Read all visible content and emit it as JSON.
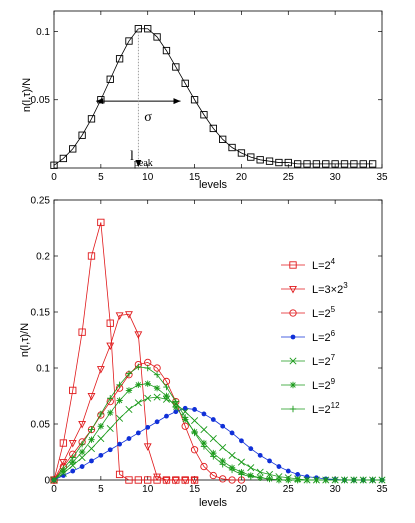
{
  "chart_data": [
    {
      "type": "line",
      "xlabel": "levels",
      "ylabel": "n(l,τ)/N",
      "xlim": [
        0,
        35
      ],
      "ylim": [
        0,
        0.115
      ],
      "xticks": [
        "0",
        "5",
        "10",
        "15",
        "20",
        "25",
        "30",
        "35"
      ],
      "yticks": [
        "0.05",
        "0.1"
      ],
      "grid": false,
      "series": [
        {
          "marker": "square",
          "color": "#000000",
          "x": [
            0,
            1,
            2,
            3,
            4,
            5,
            6,
            7,
            8,
            9,
            10,
            11,
            12,
            13,
            14,
            15,
            16,
            17,
            18,
            19,
            20,
            21,
            22,
            23,
            24,
            25,
            26,
            27,
            28,
            29,
            30,
            31,
            32,
            33,
            34
          ],
          "y": [
            0.002,
            0.007,
            0.014,
            0.024,
            0.036,
            0.05,
            0.065,
            0.08,
            0.093,
            0.102,
            0.102,
            0.096,
            0.086,
            0.074,
            0.062,
            0.05,
            0.039,
            0.029,
            0.021,
            0.015,
            0.011,
            0.008,
            0.006,
            0.005,
            0.004,
            0.004,
            0.003,
            0.003,
            0.003,
            0.003,
            0.003,
            0.003,
            0.003,
            0.003,
            0.003
          ]
        }
      ],
      "annotations": {
        "sigma": {
          "label": "σ",
          "x_from": 4.5,
          "x_to": 13.5,
          "y": 0.049
        },
        "peak": {
          "label_main": "l",
          "label_sub": "peak",
          "x": 9
        }
      }
    },
    {
      "type": "line",
      "xlabel": "levels",
      "ylabel": "n(l,τ)/N",
      "xlim": [
        0,
        35
      ],
      "ylim": [
        0,
        0.25
      ],
      "xticks": [
        "0",
        "5",
        "10",
        "15",
        "20",
        "25",
        "30",
        "35"
      ],
      "yticks": [
        "0",
        "0.05",
        "0.1",
        "0.15",
        "0.2",
        "0.25"
      ],
      "grid": false,
      "legend_position": "right",
      "series": [
        {
          "name_main": "L=2",
          "name_sup": "4",
          "marker": "square",
          "color": "#e0191b",
          "x": [
            0,
            1,
            2,
            3,
            4,
            5,
            6,
            7,
            8,
            9,
            10,
            11,
            12,
            13,
            14,
            15
          ],
          "y": [
            0,
            0.033,
            0.08,
            0.132,
            0.2,
            0.23,
            0.14,
            0.005,
            0,
            0,
            0,
            0,
            0,
            0,
            0,
            0
          ]
        },
        {
          "name_main": "L=3×2",
          "name_sup": "3",
          "marker": "triangle-down",
          "color": "#e0191b",
          "x": [
            0,
            1,
            2,
            3,
            4,
            5,
            6,
            7,
            8,
            9,
            10,
            11,
            12,
            13,
            14,
            15
          ],
          "y": [
            0,
            0.016,
            0.033,
            0.05,
            0.075,
            0.099,
            0.12,
            0.147,
            0.148,
            0.13,
            0.03,
            0.003,
            0,
            0,
            0,
            0
          ]
        },
        {
          "name_main": "L=2",
          "name_sup": "5",
          "marker": "circle",
          "color": "#e0191b",
          "x": [
            0,
            1,
            2,
            3,
            4,
            5,
            6,
            7,
            8,
            9,
            10,
            11,
            12,
            13,
            14,
            15,
            16,
            17,
            18,
            19,
            20
          ],
          "y": [
            0,
            0.012,
            0.023,
            0.034,
            0.045,
            0.058,
            0.07,
            0.082,
            0.094,
            0.103,
            0.105,
            0.1,
            0.088,
            0.07,
            0.048,
            0.027,
            0.012,
            0.004,
            0.001,
            0,
            0
          ]
        },
        {
          "name_main": "L=2",
          "name_sup": "6",
          "marker": "dot",
          "color": "#1030d8",
          "x": [
            0,
            1,
            2,
            3,
            4,
            5,
            6,
            7,
            8,
            9,
            10,
            11,
            12,
            13,
            14,
            15,
            16,
            17,
            18,
            19,
            20,
            21,
            22,
            23,
            24,
            25,
            26,
            27,
            28,
            29,
            30,
            31,
            32,
            33,
            34,
            35
          ],
          "y": [
            0,
            0.004,
            0.008,
            0.012,
            0.017,
            0.022,
            0.027,
            0.032,
            0.037,
            0.042,
            0.047,
            0.052,
            0.057,
            0.061,
            0.064,
            0.063,
            0.059,
            0.054,
            0.048,
            0.042,
            0.035,
            0.028,
            0.022,
            0.017,
            0.012,
            0.008,
            0.005,
            0.003,
            0.002,
            0.001,
            0.0005,
            0,
            0,
            0,
            0,
            0
          ]
        },
        {
          "name_main": "L=2",
          "name_sup": "7",
          "marker": "x",
          "color": "#1a9a1a",
          "x": [
            0,
            1,
            2,
            3,
            4,
            5,
            6,
            7,
            8,
            9,
            10,
            11,
            12,
            13,
            14,
            15,
            16,
            17,
            18,
            19,
            20,
            21,
            22,
            23,
            24,
            25,
            26,
            27,
            28,
            29,
            30,
            31,
            32,
            33,
            34,
            35
          ],
          "y": [
            0,
            0.006,
            0.013,
            0.02,
            0.028,
            0.037,
            0.046,
            0.055,
            0.063,
            0.069,
            0.073,
            0.074,
            0.072,
            0.068,
            0.061,
            0.053,
            0.045,
            0.037,
            0.029,
            0.022,
            0.016,
            0.011,
            0.007,
            0.005,
            0.003,
            0.002,
            0.001,
            0,
            0,
            0,
            0,
            0,
            0,
            0,
            0,
            0
          ]
        },
        {
          "name_main": "L=2",
          "name_sup": "9",
          "marker": "star",
          "color": "#1a9a1a",
          "x": [
            0,
            1,
            2,
            3,
            4,
            5,
            6,
            7,
            8,
            9,
            10,
            11,
            12,
            13,
            14,
            15,
            16,
            17,
            18,
            19,
            20,
            21,
            22,
            23,
            24,
            25,
            26,
            27,
            28,
            29,
            30,
            31,
            32,
            33,
            34,
            35
          ],
          "y": [
            0,
            0.008,
            0.016,
            0.025,
            0.036,
            0.048,
            0.06,
            0.071,
            0.08,
            0.085,
            0.086,
            0.082,
            0.075,
            0.065,
            0.054,
            0.043,
            0.033,
            0.024,
            0.017,
            0.011,
            0.007,
            0.004,
            0.002,
            0.001,
            0,
            0,
            0,
            0,
            0,
            0,
            0,
            0,
            0,
            0,
            0,
            0
          ]
        },
        {
          "name_main": "L=2",
          "name_sup": "12",
          "marker": "plus",
          "color": "#1a9a1a",
          "x": [
            0,
            1,
            2,
            3,
            4,
            5,
            6,
            7,
            8,
            9,
            10,
            11,
            12,
            13,
            14,
            15,
            16,
            17,
            18,
            19,
            20,
            21,
            22,
            23,
            24,
            25,
            26,
            27,
            28,
            29,
            30,
            31,
            32,
            33,
            34,
            35
          ],
          "y": [
            0,
            0.01,
            0.02,
            0.032,
            0.045,
            0.059,
            0.073,
            0.085,
            0.095,
            0.101,
            0.1,
            0.094,
            0.083,
            0.07,
            0.056,
            0.042,
            0.03,
            0.021,
            0.014,
            0.009,
            0.005,
            0.003,
            0.002,
            0.001,
            0,
            0,
            0,
            0,
            0,
            0,
            0,
            0,
            0,
            0,
            0,
            0
          ]
        }
      ]
    }
  ]
}
